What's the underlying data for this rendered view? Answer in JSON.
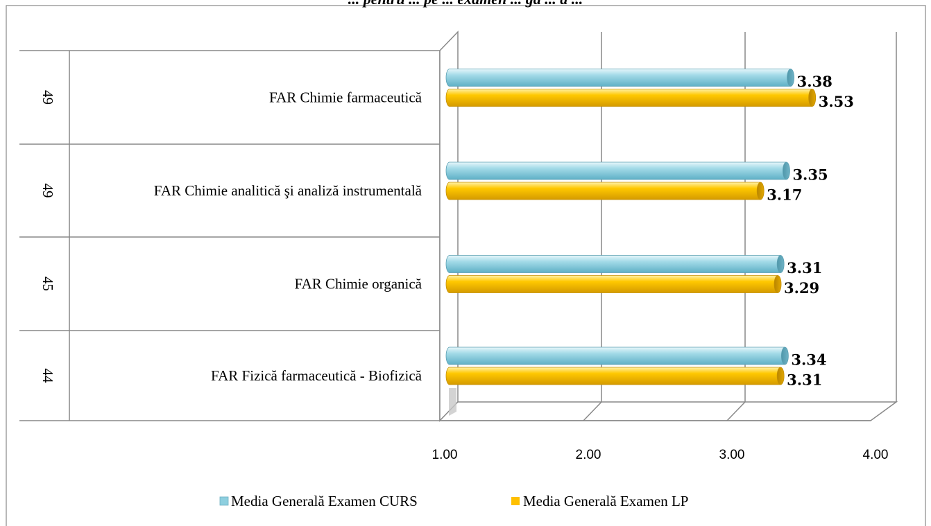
{
  "chart_data": {
    "type": "bar",
    "orientation": "horizontal",
    "title": "... pentru ... pe ... examen ... ga ... a ...",
    "rows": [
      {
        "count": "49",
        "label": "FAR Chimie farmaceutică"
      },
      {
        "count": "49",
        "label": "FAR Chimie analitică şi analiză instrumentală"
      },
      {
        "count": "45",
        "label": "FAR Chimie organică"
      },
      {
        "count": "44",
        "label": "FAR Fizică farmaceutică - Biofizică"
      }
    ],
    "categories": [
      "FAR Chimie farmaceutică",
      "FAR Chimie analitică şi analiză instrumentală",
      "FAR Chimie organică",
      "FAR Fizică farmaceutică - Biofizică"
    ],
    "series": [
      {
        "name": "Media Generală Examen CURS",
        "color": "#8ecfdf",
        "values": [
          3.38,
          3.35,
          3.31,
          3.34
        ],
        "value_labels": [
          "3.38",
          "3.35",
          "3.31",
          "3.34"
        ]
      },
      {
        "name": "Media Generală Examen LP",
        "color": "#ffc000",
        "values": [
          3.53,
          3.17,
          3.29,
          3.31
        ],
        "value_labels": [
          "3.53",
          "3.17",
          "3.29",
          "3.31"
        ]
      }
    ],
    "xlim": [
      1.0,
      4.0
    ],
    "xticks": [
      "1.00",
      "2.00",
      "3.00",
      "4.00"
    ],
    "grid": true,
    "legend_position": "bottom"
  }
}
